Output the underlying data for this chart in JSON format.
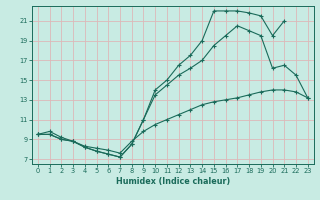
{
  "xlabel": "Humidex (Indice chaleur)",
  "background_color": "#c8ebe3",
  "grid_color": "#ddb8b8",
  "line_color": "#1a6b5a",
  "xlim": [
    -0.5,
    23.5
  ],
  "ylim": [
    6.5,
    22.5
  ],
  "xticks": [
    0,
    1,
    2,
    3,
    4,
    5,
    6,
    7,
    8,
    9,
    10,
    11,
    12,
    13,
    14,
    15,
    16,
    17,
    18,
    19,
    20,
    21,
    22,
    23
  ],
  "yticks": [
    7,
    9,
    11,
    13,
    15,
    17,
    19,
    21
  ],
  "line1_x": [
    0,
    1,
    2,
    3,
    4,
    5,
    6,
    7,
    8,
    9,
    10,
    11,
    12,
    13,
    14,
    15,
    16,
    17,
    18,
    19,
    20,
    21
  ],
  "line1_y": [
    9.5,
    9.5,
    9.0,
    8.8,
    8.2,
    7.8,
    7.5,
    7.2,
    8.5,
    11.0,
    14.0,
    15.0,
    16.5,
    17.5,
    19.0,
    22.0,
    22.0,
    22.0,
    21.8,
    21.5,
    19.5,
    21.0
  ],
  "line2_x": [
    0,
    1,
    2,
    3,
    4,
    5,
    6,
    7,
    8,
    9,
    10,
    11,
    12,
    13,
    14,
    15,
    16,
    17,
    18,
    19,
    20,
    21,
    22,
    23
  ],
  "line2_y": [
    9.5,
    9.5,
    9.0,
    8.8,
    8.2,
    7.8,
    7.5,
    7.2,
    8.5,
    11.0,
    13.5,
    14.5,
    15.5,
    16.2,
    17.0,
    18.5,
    19.5,
    20.5,
    20.0,
    19.5,
    16.2,
    16.5,
    15.5,
    13.2
  ],
  "line3_x": [
    0,
    1,
    2,
    3,
    4,
    5,
    6,
    7,
    8,
    9,
    10,
    11,
    12,
    13,
    14,
    15,
    16,
    17,
    18,
    19,
    20,
    21,
    22,
    23
  ],
  "line3_y": [
    9.5,
    9.8,
    9.2,
    8.8,
    8.3,
    8.1,
    7.9,
    7.6,
    8.8,
    9.8,
    10.5,
    11.0,
    11.5,
    12.0,
    12.5,
    12.8,
    13.0,
    13.2,
    13.5,
    13.8,
    14.0,
    14.0,
    13.8,
    13.2
  ]
}
